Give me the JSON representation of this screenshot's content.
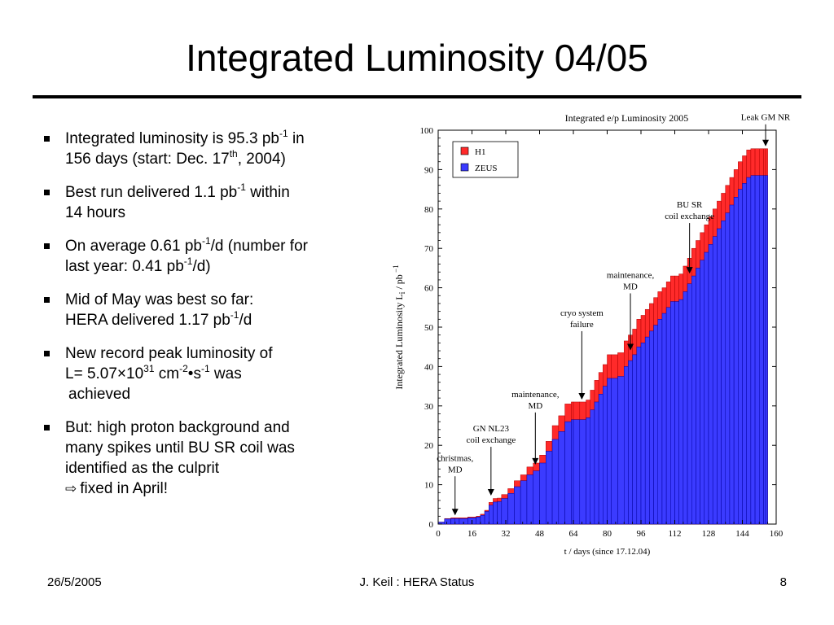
{
  "slide": {
    "title": "Integrated Luminosity 04/05",
    "bullets": [
      {
        "text": "Integrated luminosity is 95.3 pb",
        "sup1": "-1",
        "after1": " in",
        "line2": "156 days (start: Dec. 17",
        "sup2": "th",
        "after2": ", 2004)"
      },
      {
        "text": "Best run delivered 1.1 pb",
        "sup1": "-1",
        "after1": " within",
        "line2": "14 hours"
      },
      {
        "text": "On average 0.61 pb",
        "sup1": "-1",
        "after1": "/d (number for",
        "line2": "last year: 0.41 pb",
        "sup2": "-1",
        "after2": "/d)"
      },
      {
        "text": "Mid of May was best so far:",
        "line2": "HERA delivered 1.17 pb",
        "sup2": "-1",
        "after2": "/d"
      },
      {
        "text": "New record peak luminosity of",
        "line2a": "L= 5.07×10",
        "sup2a": "31",
        "line2b": " cm",
        "sup2b": "-2",
        "line2c": "•s",
        "sup2c": "-1",
        "line2d": " was",
        "line3": "achieved"
      },
      {
        "text": "But: high proton background and",
        "line2": "many spikes until BU SR coil was",
        "line3": "identified as the culprit",
        "line4": "fixed in April!"
      }
    ]
  },
  "footer": {
    "date": "26/5/2005",
    "center": "J. Keil : HERA Status",
    "page": "8"
  },
  "chart_data": {
    "type": "area",
    "title": "Integrated  e/p Luminosity 2005",
    "xlabel": "t / days (since 17.12.04)",
    "ylabel": "Integrated Luminosity  L",
    "ylabel_sub": "i",
    "ylabel_unit": " / pb",
    "ylabel_sup": "−1",
    "xlim": [
      0,
      160
    ],
    "ylim": [
      0,
      100
    ],
    "xticks": [
      0,
      16,
      32,
      48,
      64,
      80,
      96,
      112,
      128,
      144,
      160
    ],
    "yticks": [
      0,
      10,
      20,
      30,
      40,
      50,
      60,
      70,
      80,
      90,
      100
    ],
    "legend_position": "top-left",
    "series": [
      {
        "name": "H1",
        "color": "#ff2a2a",
        "x": [
          0,
          3,
          6,
          8,
          10,
          14,
          18,
          20,
          22,
          24,
          26,
          28,
          30,
          33,
          36,
          39,
          42,
          45,
          48,
          51,
          54,
          57,
          60,
          63,
          64,
          67,
          70,
          72,
          74,
          76,
          78,
          80,
          82,
          85,
          88,
          90,
          92,
          94,
          96,
          98,
          100,
          102,
          104,
          106,
          108,
          110,
          112,
          114,
          116,
          118,
          120,
          122,
          124,
          126,
          128,
          130,
          132,
          134,
          136,
          138,
          140,
          142,
          144,
          146,
          148,
          150,
          152,
          154,
          155,
          156
        ],
        "values": [
          0,
          0.5,
          1.4,
          1.6,
          1.6,
          1.6,
          1.8,
          2.0,
          2.5,
          3.5,
          5.5,
          6.5,
          6.6,
          7.5,
          9,
          11,
          12.5,
          14.5,
          15.5,
          17.5,
          21,
          25,
          27.5,
          30.5,
          31,
          31,
          31,
          31.5,
          34,
          36.5,
          38.5,
          40.5,
          43,
          43,
          43.5,
          46.5,
          48,
          49.5,
          52,
          53,
          54.5,
          56,
          57.5,
          59,
          60,
          61.5,
          63,
          63,
          63.5,
          65.5,
          67.5,
          70,
          72,
          74,
          76,
          78,
          80,
          82,
          84,
          86,
          88,
          90,
          92,
          93.5,
          95,
          95.3,
          95.3,
          95.3,
          95.3,
          95.3
        ]
      },
      {
        "name": "ZEUS",
        "color": "#3b3bff",
        "x": [
          0,
          3,
          6,
          8,
          10,
          14,
          18,
          20,
          22,
          24,
          26,
          28,
          30,
          33,
          36,
          39,
          42,
          45,
          48,
          51,
          54,
          57,
          60,
          63,
          64,
          67,
          70,
          72,
          74,
          76,
          78,
          80,
          82,
          85,
          88,
          90,
          92,
          94,
          96,
          98,
          100,
          102,
          104,
          106,
          108,
          110,
          112,
          114,
          116,
          118,
          120,
          122,
          124,
          126,
          128,
          130,
          132,
          134,
          136,
          138,
          140,
          142,
          144,
          146,
          148,
          150,
          152,
          154,
          155,
          156
        ],
        "values": [
          0,
          0.5,
          1.3,
          1.4,
          1.4,
          1.4,
          1.6,
          1.8,
          2.2,
          3.2,
          4.8,
          5.6,
          5.7,
          6.5,
          7.8,
          9.5,
          11,
          12.5,
          13.5,
          15.5,
          18.5,
          21.5,
          23.5,
          26,
          26.5,
          26.5,
          26.5,
          27,
          29,
          31,
          33,
          35,
          37,
          37,
          37.5,
          40,
          41.5,
          43,
          45,
          46,
          47.5,
          49,
          50.5,
          52,
          53.5,
          55,
          56.5,
          56.5,
          57,
          59,
          61,
          63,
          65,
          67,
          69,
          71,
          73,
          75,
          77,
          79,
          81,
          83,
          85,
          86.5,
          88,
          88.5,
          88.5,
          88.5,
          88.5,
          88.5
        ]
      }
    ],
    "annotations": [
      {
        "lines": [
          "christmas,",
          "MD"
        ],
        "x": 8,
        "y": 1.6
      },
      {
        "lines": [
          "GN NL23",
          "coil exchange"
        ],
        "x": 25,
        "y": 6.6
      },
      {
        "lines": [
          "maintenance,",
          "MD"
        ],
        "x": 46,
        "y": 14.5
      },
      {
        "lines": [
          "cryo system",
          "failure"
        ],
        "x": 68,
        "y": 31
      },
      {
        "lines": [
          "maintenance,",
          "MD"
        ],
        "x": 91,
        "y": 43.5
      },
      {
        "lines": [
          "BU SR",
          "coil exchange"
        ],
        "x": 119,
        "y": 63
      },
      {
        "lines": [
          "Leak GM NR"
        ],
        "x": 155,
        "y": 95.3
      }
    ]
  }
}
